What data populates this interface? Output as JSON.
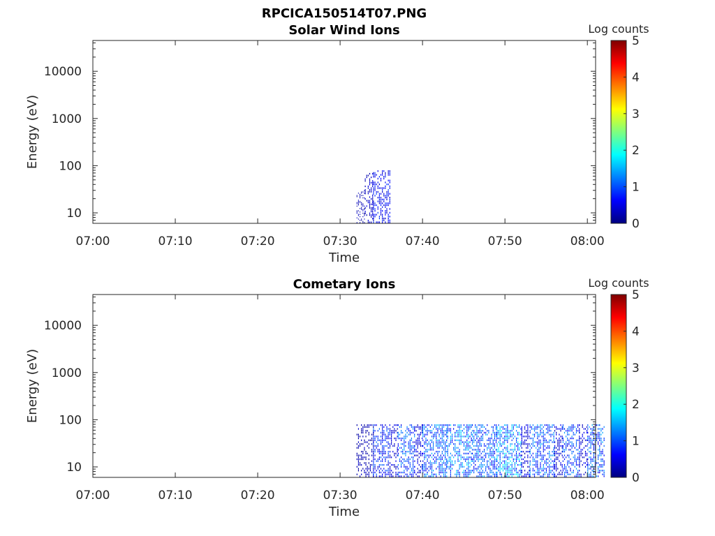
{
  "figure": {
    "title": "RPCICA150514T07.PNG"
  },
  "colorbar": {
    "label": "Log counts",
    "ticks": [
      "0",
      "1",
      "2",
      "3",
      "4",
      "5"
    ],
    "colormap": "jet",
    "colors": [
      "#00007f",
      "#0000ff",
      "#007fff",
      "#00ffff",
      "#7fff7f",
      "#ffff00",
      "#ff7f00",
      "#ff0000",
      "#7f0000"
    ]
  },
  "chart_data": [
    {
      "type": "heatmap",
      "title": "Solar Wind Ions",
      "xlabel": "Time",
      "ylabel": "Energy (eV)",
      "x_ticks": [
        "07:00",
        "07:10",
        "07:20",
        "07:30",
        "07:40",
        "07:50",
        "08:00"
      ],
      "x_range": [
        "07:00",
        "08:01"
      ],
      "y_ticks": [
        "10",
        "100",
        "1000",
        "10000"
      ],
      "y_scale": "log",
      "y_range": [
        6,
        45000
      ],
      "z_range": [
        0,
        5
      ],
      "z_label": "Log counts",
      "activity": [
        {
          "start": "07:32",
          "end": "07:32",
          "log_counts": 0.3,
          "emax": 30
        },
        {
          "start": "07:33",
          "end": "07:33",
          "log_counts": 0.4,
          "emax": 70
        },
        {
          "start": "07:34",
          "end": "07:35",
          "log_counts": 0.7,
          "emax": 80
        }
      ]
    },
    {
      "type": "heatmap",
      "title": "Cometary Ions",
      "xlabel": "Time",
      "ylabel": "Energy (eV)",
      "x_ticks": [
        "07:00",
        "07:10",
        "07:20",
        "07:30",
        "07:40",
        "07:50",
        "08:00"
      ],
      "x_range": [
        "07:00",
        "08:01"
      ],
      "y_ticks": [
        "10",
        "100",
        "1000",
        "10000"
      ],
      "y_scale": "log",
      "y_range": [
        6,
        45000
      ],
      "z_range": [
        0,
        5
      ],
      "z_label": "Log counts",
      "activity": [
        {
          "start": "07:32",
          "end": "07:33",
          "log_counts": 0.3,
          "emax": 80
        },
        {
          "start": "07:34",
          "end": "07:35",
          "log_counts": 0.9,
          "emax": 80
        },
        {
          "start": "07:36",
          "end": "07:36",
          "log_counts": 0.5,
          "emax": 80
        },
        {
          "start": "07:37",
          "end": "07:38",
          "log_counts": 1.1,
          "emax": 80
        },
        {
          "start": "07:39",
          "end": "07:39",
          "log_counts": 0.5,
          "emax": 80
        },
        {
          "start": "07:40",
          "end": "07:42",
          "log_counts": 1.2,
          "emax": 80
        },
        {
          "start": "07:43",
          "end": "07:45",
          "log_counts": 1.4,
          "emax": 80
        },
        {
          "start": "07:46",
          "end": "07:48",
          "log_counts": 1.2,
          "emax": 80
        },
        {
          "start": "07:49",
          "end": "07:51",
          "log_counts": 1.5,
          "emax": 80
        },
        {
          "start": "07:52",
          "end": "07:52",
          "log_counts": 0.5,
          "emax": 80
        },
        {
          "start": "07:53",
          "end": "07:55",
          "log_counts": 1.2,
          "emax": 80
        },
        {
          "start": "07:56",
          "end": "07:56",
          "log_counts": 0.5,
          "emax": 80
        },
        {
          "start": "07:57",
          "end": "07:58",
          "log_counts": 1.1,
          "emax": 80
        },
        {
          "start": "07:59",
          "end": "07:59",
          "log_counts": 0.5,
          "emax": 80
        },
        {
          "start": "08:00",
          "end": "08:01",
          "log_counts": 1.2,
          "emax": 80
        }
      ]
    }
  ]
}
